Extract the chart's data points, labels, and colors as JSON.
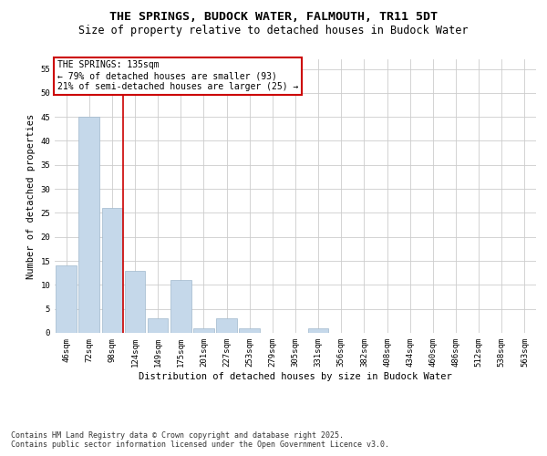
{
  "title_line1": "THE SPRINGS, BUDOCK WATER, FALMOUTH, TR11 5DT",
  "title_line2": "Size of property relative to detached houses in Budock Water",
  "xlabel": "Distribution of detached houses by size in Budock Water",
  "ylabel": "Number of detached properties",
  "categories": [
    "46sqm",
    "72sqm",
    "98sqm",
    "124sqm",
    "149sqm",
    "175sqm",
    "201sqm",
    "227sqm",
    "253sqm",
    "279sqm",
    "305sqm",
    "331sqm",
    "356sqm",
    "382sqm",
    "408sqm",
    "434sqm",
    "460sqm",
    "486sqm",
    "512sqm",
    "538sqm",
    "563sqm"
  ],
  "values": [
    14,
    45,
    26,
    13,
    3,
    11,
    1,
    3,
    1,
    0,
    0,
    1,
    0,
    0,
    0,
    0,
    0,
    0,
    0,
    0,
    0
  ],
  "bar_color": "#c5d8ea",
  "bar_edge_color": "#a0b8cc",
  "grid_color": "#cccccc",
  "background_color": "#ffffff",
  "annotation_text": "THE SPRINGS: 135sqm\n← 79% of detached houses are smaller (93)\n21% of semi-detached houses are larger (25) →",
  "annotation_box_color": "#ffffff",
  "annotation_box_edge_color": "#cc0000",
  "vline_x_index": 3,
  "vline_color": "#cc0000",
  "ylim": [
    0,
    57
  ],
  "yticks": [
    0,
    5,
    10,
    15,
    20,
    25,
    30,
    35,
    40,
    45,
    50,
    55
  ],
  "footer_line1": "Contains HM Land Registry data © Crown copyright and database right 2025.",
  "footer_line2": "Contains public sector information licensed under the Open Government Licence v3.0.",
  "title_fontsize": 9.5,
  "subtitle_fontsize": 8.5,
  "axis_label_fontsize": 7.5,
  "tick_fontsize": 6.5,
  "annotation_fontsize": 7,
  "footer_fontsize": 6
}
